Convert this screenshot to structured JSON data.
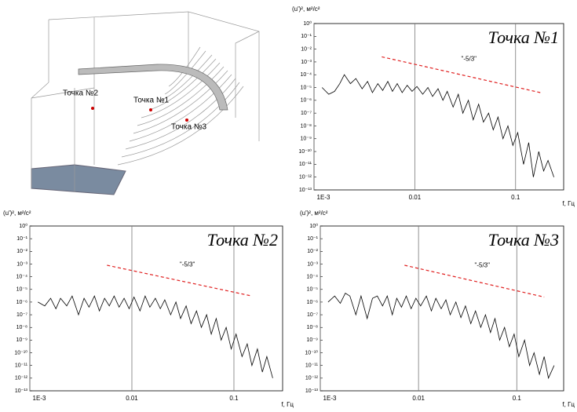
{
  "diagram": {
    "labels": [
      "Точка №2",
      "Точка №1",
      "Точка №3"
    ]
  },
  "chart_data": [
    {
      "type": "line",
      "title": "Точка №1",
      "y_label": "(u')², м²/с²",
      "x_label": "f, Гц",
      "log_x": true,
      "log_y": true,
      "grid": "x",
      "color": "#000000",
      "xlim": [
        0.001,
        0.3
      ],
      "ylim": [
        1e-13,
        1
      ],
      "xticks": [
        {
          "value": 0.001,
          "label": "1E-3"
        },
        0.01,
        0.1
      ],
      "yticks": [
        {
          "value": 1,
          "label": "10⁰"
        },
        {
          "value": 0.1,
          "label": "10⁻¹"
        },
        {
          "value": 0.01,
          "label": "10⁻²"
        },
        {
          "value": 0.001,
          "label": "10⁻³"
        },
        {
          "value": 0.0001,
          "label": "10⁻⁴"
        },
        {
          "value": 1e-05,
          "label": "10⁻⁵"
        },
        {
          "value": 1e-06,
          "label": "10⁻⁶"
        },
        {
          "value": 1e-07,
          "label": "10⁻⁷"
        },
        {
          "value": 1e-08,
          "label": "10⁻⁸"
        },
        {
          "value": 1e-09,
          "label": "10⁻⁹"
        },
        {
          "value": 1e-10,
          "label": "10⁻¹⁰"
        },
        {
          "value": 1e-11,
          "label": "10⁻¹¹"
        },
        {
          "value": 1e-12,
          "label": "10⁻¹²"
        },
        {
          "value": 1e-13,
          "label": "10⁻¹³"
        }
      ],
      "x": [
        0.0012,
        0.0014,
        0.0016,
        0.0018,
        0.002,
        0.0023,
        0.0026,
        0.003,
        0.0034,
        0.0038,
        0.0043,
        0.0048,
        0.0054,
        0.006,
        0.0067,
        0.0075,
        0.0084,
        0.0094,
        0.0105,
        0.012,
        0.0135,
        0.015,
        0.017,
        0.019,
        0.021,
        0.024,
        0.027,
        0.03,
        0.034,
        0.038,
        0.043,
        0.048,
        0.054,
        0.06,
        0.067,
        0.075,
        0.084,
        0.094,
        0.105,
        0.12,
        0.135,
        0.15,
        0.17,
        0.19,
        0.21,
        0.24
      ],
      "values": [
        1e-05,
        3e-06,
        5e-06,
        2e-05,
        0.0001,
        2e-05,
        5e-05,
        8e-06,
        3e-05,
        4e-06,
        2e-05,
        6e-06,
        3e-05,
        5e-06,
        2e-05,
        4e-06,
        1.5e-05,
        5e-06,
        1.2e-05,
        3e-06,
        1e-05,
        2e-06,
        8e-06,
        1e-06,
        5e-06,
        3e-07,
        3e-06,
        1e-07,
        1e-06,
        3e-08,
        5e-07,
        2e-08,
        1e-07,
        5e-09,
        5e-08,
        1e-09,
        1e-08,
        3e-10,
        3e-09,
        1e-11,
        5e-10,
        1e-12,
        1e-10,
        3e-12,
        2e-11,
        1e-12
      ],
      "reference_line": {
        "label": "\"-5/3\"",
        "color": "#e02020",
        "x": [
          0.0047,
          0.176
        ],
        "values": [
          0.0025,
          4e-06
        ]
      }
    },
    {
      "type": "line",
      "title": "Точка №2",
      "y_label": "(u')², м²/с²",
      "x_label": "f, Гц",
      "log_x": true,
      "log_y": true,
      "grid": "x",
      "color": "#000000",
      "xlim": [
        0.001,
        0.3
      ],
      "ylim": [
        1e-13,
        1
      ],
      "xticks": [
        {
          "value": 0.001,
          "label": "1E-3"
        },
        0.01,
        0.1
      ],
      "yticks": [
        {
          "value": 1,
          "label": "10⁰"
        },
        {
          "value": 0.1,
          "label": "10⁻¹"
        },
        {
          "value": 0.01,
          "label": "10⁻²"
        },
        {
          "value": 0.001,
          "label": "10⁻³"
        },
        {
          "value": 0.0001,
          "label": "10⁻⁴"
        },
        {
          "value": 1e-05,
          "label": "10⁻⁵"
        },
        {
          "value": 1e-06,
          "label": "10⁻⁶"
        },
        {
          "value": 1e-07,
          "label": "10⁻⁷"
        },
        {
          "value": 1e-08,
          "label": "10⁻⁸"
        },
        {
          "value": 1e-09,
          "label": "10⁻⁹"
        },
        {
          "value": 1e-10,
          "label": "10⁻¹⁰"
        },
        {
          "value": 1e-11,
          "label": "10⁻¹¹"
        },
        {
          "value": 1e-12,
          "label": "10⁻¹²"
        },
        {
          "value": 1e-13,
          "label": "10⁻¹³"
        }
      ],
      "x": [
        0.0012,
        0.0014,
        0.0016,
        0.0018,
        0.002,
        0.0023,
        0.0026,
        0.003,
        0.0034,
        0.0038,
        0.0043,
        0.0048,
        0.0054,
        0.006,
        0.0067,
        0.0075,
        0.0084,
        0.0094,
        0.0105,
        0.012,
        0.0135,
        0.015,
        0.017,
        0.019,
        0.021,
        0.024,
        0.027,
        0.03,
        0.034,
        0.038,
        0.043,
        0.048,
        0.054,
        0.06,
        0.067,
        0.075,
        0.084,
        0.094,
        0.105,
        0.12,
        0.135,
        0.15,
        0.17,
        0.19,
        0.21,
        0.24
      ],
      "values": [
        1e-06,
        5e-07,
        2e-06,
        3e-07,
        2e-06,
        5e-07,
        3e-06,
        1e-07,
        2e-06,
        4e-07,
        3e-06,
        2e-07,
        2e-06,
        5e-07,
        3e-06,
        4e-07,
        2e-06,
        3e-07,
        2.5e-06,
        2e-07,
        3e-06,
        4e-07,
        2e-06,
        3e-07,
        1.5e-06,
        1e-07,
        1e-06,
        5e-08,
        5e-07,
        2e-08,
        2e-07,
        1e-08,
        1e-07,
        3e-09,
        5e-08,
        1e-09,
        1e-08,
        2e-10,
        3e-09,
        5e-11,
        5e-10,
        1e-11,
        2e-10,
        3e-12,
        5e-11,
        1e-12
      ],
      "reference_line": {
        "label": "\"-5/3\"",
        "color": "#e02020",
        "x": [
          0.0057,
          0.15
        ],
        "values": [
          0.0008,
          3e-06
        ]
      }
    },
    {
      "type": "line",
      "title": "Точка №3",
      "y_label": "(u')², м²/с²",
      "x_label": "f, Гц",
      "log_x": true,
      "log_y": true,
      "grid": "x",
      "color": "#000000",
      "xlim": [
        0.001,
        0.3
      ],
      "ylim": [
        1e-13,
        1
      ],
      "xticks": [
        {
          "value": 0.001,
          "label": "1E-3"
        },
        0.01,
        0.1
      ],
      "yticks": [
        {
          "value": 1,
          "label": "10⁰"
        },
        {
          "value": 0.1,
          "label": "10⁻¹"
        },
        {
          "value": 0.01,
          "label": "10⁻²"
        },
        {
          "value": 0.001,
          "label": "10⁻³"
        },
        {
          "value": 0.0001,
          "label": "10⁻⁴"
        },
        {
          "value": 1e-05,
          "label": "10⁻⁵"
        },
        {
          "value": 1e-06,
          "label": "10⁻⁶"
        },
        {
          "value": 1e-07,
          "label": "10⁻⁷"
        },
        {
          "value": 1e-08,
          "label": "10⁻⁸"
        },
        {
          "value": 1e-09,
          "label": "10⁻⁹"
        },
        {
          "value": 1e-10,
          "label": "10⁻¹⁰"
        },
        {
          "value": 1e-11,
          "label": "10⁻¹¹"
        },
        {
          "value": 1e-12,
          "label": "10⁻¹²"
        },
        {
          "value": 1e-13,
          "label": "10⁻¹³"
        }
      ],
      "x": [
        0.0012,
        0.0014,
        0.0016,
        0.0018,
        0.002,
        0.0023,
        0.0026,
        0.003,
        0.0034,
        0.0038,
        0.0043,
        0.0048,
        0.0054,
        0.006,
        0.0067,
        0.0075,
        0.0084,
        0.0094,
        0.0105,
        0.012,
        0.0135,
        0.015,
        0.017,
        0.019,
        0.021,
        0.024,
        0.027,
        0.03,
        0.034,
        0.038,
        0.043,
        0.048,
        0.054,
        0.06,
        0.067,
        0.075,
        0.084,
        0.094,
        0.105,
        0.12,
        0.135,
        0.15,
        0.17,
        0.19,
        0.21,
        0.24
      ],
      "values": [
        1e-06,
        3e-06,
        8e-07,
        5e-06,
        3e-06,
        1e-07,
        3e-06,
        5e-08,
        2e-06,
        3e-06,
        5e-07,
        3e-06,
        1e-07,
        2e-06,
        4e-07,
        3e-06,
        3e-07,
        2e-06,
        5e-07,
        3e-06,
        2e-07,
        2e-06,
        3e-07,
        1.5e-06,
        1e-07,
        1e-06,
        6e-08,
        5e-07,
        2e-08,
        2e-07,
        1e-08,
        1e-07,
        4e-09,
        5e-08,
        1e-09,
        1e-08,
        3e-10,
        3e-09,
        5e-11,
        1e-09,
        1e-11,
        1e-10,
        2e-12,
        5e-11,
        1e-12,
        1e-11
      ],
      "reference_line": {
        "label": "\"-5/3\"",
        "color": "#e02020",
        "x": [
          0.0072,
          0.19
        ],
        "values": [
          0.0008,
          2.5e-06
        ]
      }
    }
  ]
}
